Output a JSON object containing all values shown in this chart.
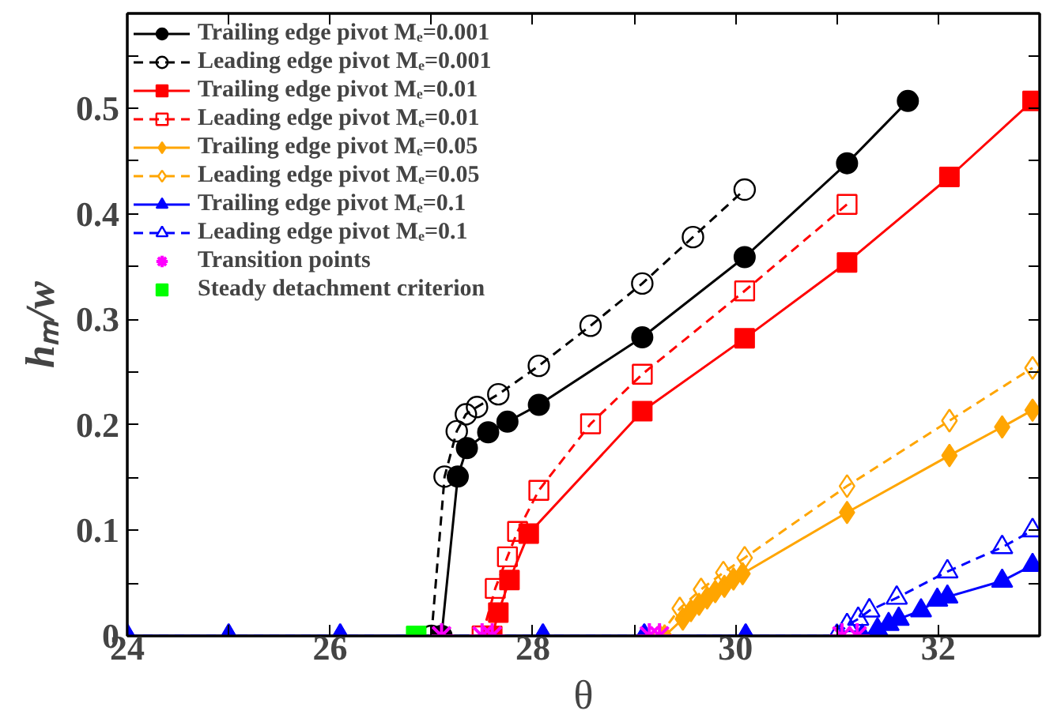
{
  "chart_data": {
    "type": "line",
    "xlabel": "θ",
    "ylabel": "hₘ/w",
    "xlim": [
      24,
      33
    ],
    "ylim": [
      0,
      0.59
    ],
    "xticks": [
      24,
      {
        "value": 25,
        "label": null
      },
      26,
      {
        "value": 27,
        "label": null
      },
      28,
      {
        "value": 29,
        "label": null
      },
      30,
      {
        "value": 31,
        "label": null
      },
      32
    ],
    "yticks": [
      0,
      {
        "value": 0.05,
        "label": null
      },
      0.1,
      {
        "value": 0.15,
        "label": null
      },
      0.2,
      {
        "value": 0.25,
        "label": null
      },
      0.3,
      {
        "value": 0.35,
        "label": null
      },
      0.4,
      {
        "value": 0.45,
        "label": null
      },
      0.5,
      {
        "value": 0.55,
        "label": null
      }
    ],
    "grid": false,
    "legend": "top left",
    "series": [
      {
        "name": "Trailing edge pivot Mₑ=0.001",
        "color": "#000000",
        "marker": "circle",
        "line_style": "solid",
        "x": [
          27.1,
          27.26,
          27.35,
          27.56,
          27.75,
          28.06,
          29.08,
          30.09,
          31.1,
          31.7
        ],
        "values": [
          0,
          0.151,
          0.178,
          0.193,
          0.203,
          0.219,
          0.283,
          0.359,
          0.448,
          0.507
        ]
      },
      {
        "name": "Leading edge pivot Mₑ=0.001",
        "color": "#000000",
        "marker": "circle",
        "line_style": "dashed",
        "x": [
          27.0,
          27.13,
          27.25,
          27.34,
          27.45,
          27.66,
          28.06,
          28.57,
          29.08,
          29.58,
          30.09
        ],
        "values": [
          0,
          0.151,
          0.194,
          0.21,
          0.217,
          0.229,
          0.256,
          0.294,
          0.334,
          0.378,
          0.423
        ]
      },
      {
        "name": "Trailing edge pivot Mₑ=0.01",
        "color": "#ff0000",
        "marker": "square",
        "line_style": "solid",
        "x": [
          27.6,
          27.66,
          27.77,
          27.96,
          29.08,
          30.09,
          31.1,
          32.11,
          32.93
        ],
        "values": [
          0,
          0.022,
          0.053,
          0.097,
          0.213,
          0.282,
          0.354,
          0.435,
          0.507
        ]
      },
      {
        "name": "Leading edge pivot Mₑ=0.01",
        "color": "#ff0000",
        "marker": "square",
        "line_style": "dashed",
        "x": [
          27.5,
          27.63,
          27.75,
          27.85,
          28.06,
          28.57,
          29.08,
          30.09,
          31.1
        ],
        "values": [
          0,
          0.045,
          0.075,
          0.099,
          0.138,
          0.201,
          0.248,
          0.327,
          0.409
        ]
      },
      {
        "name": "Trailing edge pivot Mₑ=0.05",
        "color": "#ffa500",
        "marker": "diamond",
        "line_style": "solid",
        "x": [
          29.3,
          29.48,
          29.56,
          29.64,
          29.72,
          29.8,
          29.89,
          29.98,
          30.07,
          31.1,
          32.11,
          32.63,
          32.93
        ],
        "values": [
          0,
          0.016,
          0.024,
          0.03,
          0.036,
          0.042,
          0.047,
          0.054,
          0.059,
          0.117,
          0.171,
          0.198,
          0.214
        ]
      },
      {
        "name": "Leading edge pivot Mₑ=0.05",
        "color": "#ffa500",
        "marker": "diamond",
        "line_style": "dashed",
        "x": [
          29.25,
          29.45,
          29.66,
          29.88,
          30.09,
          31.1,
          32.11,
          32.93
        ],
        "values": [
          0,
          0.026,
          0.044,
          0.06,
          0.074,
          0.142,
          0.204,
          0.254
        ]
      },
      {
        "name": "Trailing edge pivot Mₑ=0.1",
        "color": "#0000ff",
        "marker": "triangle",
        "line_style": "solid",
        "x": [
          24,
          25,
          26.1,
          28.1,
          29.1,
          30.1,
          31.25,
          31.4,
          31.51,
          31.61,
          31.83,
          31.99,
          32.09,
          32.63,
          32.93
        ],
        "values": [
          0,
          0,
          0,
          0,
          0,
          0,
          0,
          0.006,
          0.011,
          0.016,
          0.024,
          0.034,
          0.037,
          0.052,
          0.067
        ]
      },
      {
        "name": "Leading edge pivot Mₑ=0.1",
        "color": "#0000ff",
        "marker": "triangle",
        "line_style": "dashed",
        "x": [
          24,
          25,
          26.1,
          28.1,
          29.1,
          30.1,
          31.0,
          31.1,
          31.21,
          31.32,
          31.59,
          32.09,
          32.63,
          32.93
        ],
        "values": [
          0,
          0,
          0,
          0,
          0,
          0,
          0,
          0.01,
          0.016,
          0.024,
          0.036,
          0.061,
          0.084,
          0.1
        ]
      },
      {
        "name": "Transition points",
        "type": "scatter",
        "color": "#ff00ff",
        "marker": "cross",
        "x": [
          27.1,
          27.5,
          27.6,
          29.15,
          29.25,
          31.05,
          31.2
        ],
        "values": [
          0,
          0,
          0,
          0,
          0,
          0,
          0
        ]
      },
      {
        "name": "Steady detachment criterion",
        "type": "scatter",
        "color": "#00ff00",
        "marker": "square",
        "x": [
          26.85
        ],
        "values": [
          0
        ]
      }
    ]
  }
}
